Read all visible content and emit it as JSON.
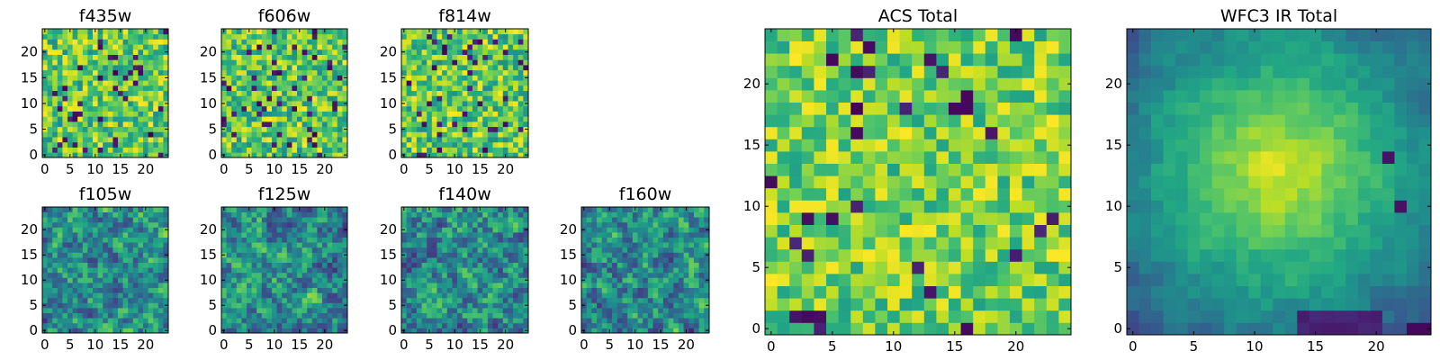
{
  "chart_data": [
    {
      "type": "heatmap",
      "title": "f435w",
      "grid_size": 25,
      "xlim": [
        0,
        24
      ],
      "ylim": [
        0,
        24
      ],
      "xticks": [
        0,
        5,
        10,
        15,
        20
      ],
      "yticks": [
        0,
        5,
        10,
        15,
        20
      ],
      "tick_labels_x": [
        "0",
        "5",
        "10",
        "15",
        "20"
      ],
      "tick_labels_y": [
        "0",
        "5",
        "10",
        "15",
        "20"
      ],
      "colormap": "viridis",
      "pattern": "noise",
      "seed": 11
    },
    {
      "type": "heatmap",
      "title": "f606w",
      "grid_size": 25,
      "xlim": [
        0,
        24
      ],
      "ylim": [
        0,
        24
      ],
      "xticks": [
        0,
        5,
        10,
        15,
        20
      ],
      "yticks": [
        0,
        5,
        10,
        15,
        20
      ],
      "tick_labels_x": [
        "0",
        "5",
        "10",
        "15",
        "20"
      ],
      "tick_labels_y": [
        "0",
        "5",
        "10",
        "15",
        "20"
      ],
      "colormap": "viridis",
      "pattern": "noise",
      "seed": 23
    },
    {
      "type": "heatmap",
      "title": "f814w",
      "grid_size": 25,
      "xlim": [
        0,
        24
      ],
      "ylim": [
        0,
        24
      ],
      "xticks": [
        0,
        5,
        10,
        15,
        20
      ],
      "yticks": [
        0,
        5,
        10,
        15,
        20
      ],
      "tick_labels_x": [
        "0",
        "5",
        "10",
        "15",
        "20"
      ],
      "tick_labels_y": [
        "0",
        "5",
        "10",
        "15",
        "20"
      ],
      "colormap": "viridis",
      "pattern": "noise",
      "seed": 37
    },
    {
      "type": "heatmap",
      "title": "f105w",
      "grid_size": 25,
      "xlim": [
        0,
        24
      ],
      "ylim": [
        0,
        24
      ],
      "xticks": [
        0,
        5,
        10,
        15,
        20
      ],
      "yticks": [
        0,
        5,
        10,
        15,
        20
      ],
      "tick_labels_x": [
        "0",
        "5",
        "10",
        "15",
        "20"
      ],
      "tick_labels_y": [
        "0",
        "5",
        "10",
        "15",
        "20"
      ],
      "colormap": "viridis",
      "pattern": "smooth",
      "seed": 41
    },
    {
      "type": "heatmap",
      "title": "f125w",
      "grid_size": 25,
      "xlim": [
        0,
        24
      ],
      "ylim": [
        0,
        24
      ],
      "xticks": [
        0,
        5,
        10,
        15,
        20
      ],
      "yticks": [
        0,
        5,
        10,
        15,
        20
      ],
      "tick_labels_x": [
        "0",
        "5",
        "10",
        "15",
        "20"
      ],
      "tick_labels_y": [
        "0",
        "5",
        "10",
        "15",
        "20"
      ],
      "colormap": "viridis",
      "pattern": "smooth",
      "seed": 53
    },
    {
      "type": "heatmap",
      "title": "f140w",
      "grid_size": 25,
      "xlim": [
        0,
        24
      ],
      "ylim": [
        0,
        24
      ],
      "xticks": [
        0,
        5,
        10,
        15,
        20
      ],
      "yticks": [
        0,
        5,
        10,
        15,
        20
      ],
      "tick_labels_x": [
        "0",
        "5",
        "10",
        "15",
        "20"
      ],
      "tick_labels_y": [
        "0",
        "5",
        "10",
        "15",
        "20"
      ],
      "colormap": "viridis",
      "pattern": "smooth",
      "seed": 67
    },
    {
      "type": "heatmap",
      "title": "f160w",
      "grid_size": 25,
      "xlim": [
        0,
        24
      ],
      "ylim": [
        0,
        24
      ],
      "xticks": [
        0,
        5,
        10,
        15,
        20
      ],
      "yticks": [
        0,
        5,
        10,
        15,
        20
      ],
      "tick_labels_x": [
        "0",
        "5",
        "10",
        "15",
        "20"
      ],
      "tick_labels_y": [
        "0",
        "5",
        "10",
        "15",
        "20"
      ],
      "colormap": "viridis",
      "pattern": "smooth",
      "seed": 79
    },
    {
      "type": "heatmap",
      "title": "ACS Total",
      "grid_size": 25,
      "xlim": [
        0,
        24
      ],
      "ylim": [
        0,
        24
      ],
      "xticks": [
        0,
        5,
        10,
        15,
        20
      ],
      "yticks": [
        0,
        5,
        10,
        15,
        20
      ],
      "tick_labels_x": [
        "0",
        "5",
        "10",
        "15",
        "20"
      ],
      "tick_labels_y": [
        "0",
        "5",
        "10",
        "15",
        "20"
      ],
      "colormap": "viridis",
      "pattern": "acs",
      "seed": 97
    },
    {
      "type": "heatmap",
      "title": "WFC3 IR Total",
      "grid_size": 25,
      "xlim": [
        0,
        24
      ],
      "ylim": [
        0,
        24
      ],
      "xticks": [
        0,
        5,
        10,
        15,
        20
      ],
      "yticks": [
        0,
        5,
        10,
        15,
        20
      ],
      "tick_labels_x": [
        "0",
        "5",
        "10",
        "15",
        "20"
      ],
      "tick_labels_y": [
        "0",
        "5",
        "10",
        "15",
        "20"
      ],
      "colormap": "viridis",
      "pattern": "wfc3",
      "seed": 113
    }
  ]
}
